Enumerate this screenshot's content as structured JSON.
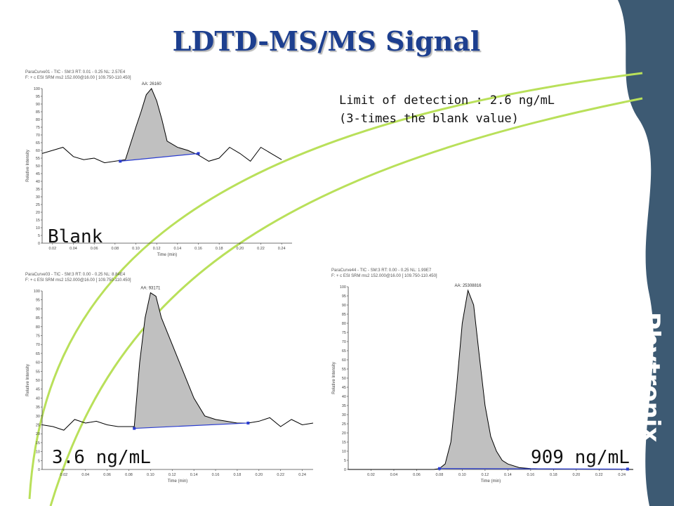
{
  "slide": {
    "title": "LDTD-MS/MS Signal",
    "note_line1": "Limit of detection : 2.6 ng/mL",
    "note_line2": "(3-times the blank value)",
    "brand": "Phytronix",
    "colors": {
      "title": "#1d3f8f",
      "panel": "#3d5a73",
      "swoosh": "#b9e05a",
      "peak_fill": "#c0c0c0",
      "baseline": "#2a3ccf"
    }
  },
  "chart_data": [
    {
      "type": "line",
      "label": "Blank",
      "header1": "ParaCurve01 - TIC - SM:3 RT: 0.01 - 0.25 NL: 2.57E4",
      "header2": "F: + c ESI SRM ms2 152.000@16.00 [ 109.750-110.450]",
      "peak_label": "AA: 26160",
      "xlabel": "Time (min)",
      "ylabel": "Relative Intensity",
      "xlim": [
        0.01,
        0.25
      ],
      "ylim": [
        0,
        100
      ],
      "xticks": [
        "0.02",
        "0.04",
        "0.06",
        "0.08",
        "0.10",
        "0.12",
        "0.14",
        "0.16",
        "0.18",
        "0.20",
        "0.22",
        "0.24"
      ],
      "yticks": [
        "0",
        "5",
        "10",
        "15",
        "20",
        "25",
        "30",
        "35",
        "40",
        "45",
        "50",
        "55",
        "60",
        "65",
        "70",
        "75",
        "80",
        "85",
        "90",
        "95",
        "100"
      ],
      "x": [
        0.01,
        0.02,
        0.03,
        0.04,
        0.05,
        0.06,
        0.07,
        0.08,
        0.09,
        0.1,
        0.105,
        0.11,
        0.115,
        0.12,
        0.125,
        0.13,
        0.14,
        0.15,
        0.16,
        0.17,
        0.18,
        0.19,
        0.2,
        0.21,
        0.22,
        0.23,
        0.24
      ],
      "y": [
        58,
        60,
        62,
        56,
        54,
        55,
        52,
        53,
        54,
        75,
        85,
        96,
        100,
        92,
        80,
        66,
        62,
        60,
        57,
        53,
        55,
        62,
        58,
        53,
        62,
        58,
        54
      ],
      "peak_start": 0.085,
      "peak_end": 0.16,
      "baseline_start_y": 53,
      "baseline_end_y": 58
    },
    {
      "type": "line",
      "label": "3.6 ng/mL",
      "header1": "ParaCurve03 - TIC - SM:3 RT: 0.00 - 0.25 NL: 8.84E4",
      "header2": "F: + c ESI SRM ms2 152.000@16.00 [ 109.750-110.450]",
      "peak_label": "AA: 93171",
      "xlabel": "Time (min)",
      "ylabel": "Relative Intensity",
      "xlim": [
        0.0,
        0.25
      ],
      "ylim": [
        0,
        100
      ],
      "xticks": [
        "0.02",
        "0.04",
        "0.06",
        "0.08",
        "0.10",
        "0.12",
        "0.14",
        "0.16",
        "0.18",
        "0.20",
        "0.22",
        "0.24"
      ],
      "yticks": [
        "0",
        "5",
        "10",
        "15",
        "20",
        "25",
        "30",
        "35",
        "40",
        "45",
        "50",
        "55",
        "60",
        "65",
        "70",
        "75",
        "80",
        "85",
        "90",
        "95",
        "100"
      ],
      "x": [
        0.0,
        0.01,
        0.02,
        0.03,
        0.04,
        0.05,
        0.06,
        0.07,
        0.08,
        0.085,
        0.09,
        0.095,
        0.1,
        0.105,
        0.11,
        0.12,
        0.13,
        0.14,
        0.15,
        0.16,
        0.17,
        0.18,
        0.19,
        0.2,
        0.21,
        0.22,
        0.23,
        0.24,
        0.25
      ],
      "y": [
        25,
        24,
        22,
        28,
        26,
        27,
        25,
        24,
        24,
        24,
        60,
        85,
        99,
        97,
        85,
        70,
        55,
        40,
        30,
        28,
        27,
        26,
        26,
        27,
        29,
        24,
        28,
        25,
        26
      ],
      "peak_start": 0.085,
      "peak_end": 0.19,
      "baseline_start_y": 23,
      "baseline_end_y": 26
    },
    {
      "type": "line",
      "label": "909 ng/mL",
      "header1": "ParaCurve44 - TIC - SM:3 RT: 0.00 - 0.25 NL: 1.99E7",
      "header2": "F: + c ESI SRM ms2 152.000@16.00 [ 109.750-110.450]",
      "peak_label": "AA: 25308816",
      "xlabel": "Time (min)",
      "ylabel": "Relative Intensity",
      "xlim": [
        0.0,
        0.25
      ],
      "ylim": [
        0,
        100
      ],
      "xticks": [
        "0.02",
        "0.04",
        "0.06",
        "0.08",
        "0.10",
        "0.12",
        "0.14",
        "0.16",
        "0.18",
        "0.20",
        "0.22",
        "0.24"
      ],
      "yticks": [
        "0",
        "5",
        "10",
        "15",
        "20",
        "25",
        "30",
        "35",
        "40",
        "45",
        "50",
        "55",
        "60",
        "65",
        "70",
        "75",
        "80",
        "85",
        "90",
        "95",
        "100"
      ],
      "x": [
        0.0,
        0.02,
        0.04,
        0.06,
        0.075,
        0.08,
        0.085,
        0.09,
        0.095,
        0.1,
        0.105,
        0.11,
        0.115,
        0.12,
        0.125,
        0.13,
        0.135,
        0.14,
        0.15,
        0.16,
        0.18,
        0.2,
        0.22,
        0.24,
        0.25
      ],
      "y": [
        0,
        0,
        0,
        0,
        0,
        0.5,
        3,
        15,
        45,
        80,
        98,
        90,
        62,
        35,
        18,
        10,
        5,
        3,
        1,
        0.5,
        0.2,
        0.2,
        0.1,
        0.1,
        0
      ],
      "peak_start": 0.08,
      "peak_end": 0.245,
      "baseline_start_y": 0.5,
      "baseline_end_y": 0.2
    }
  ]
}
